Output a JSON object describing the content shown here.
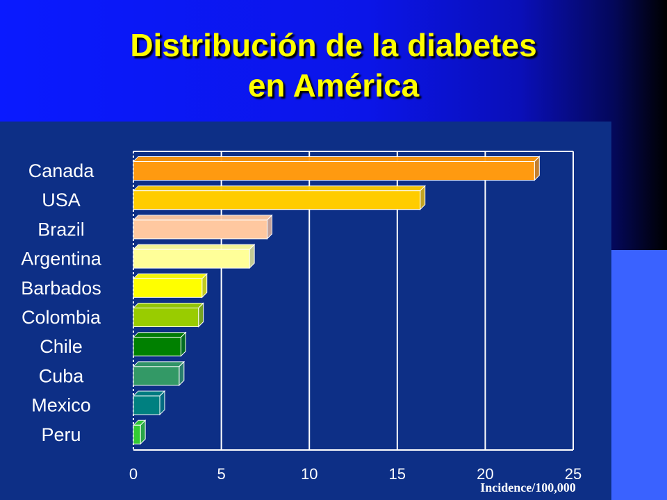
{
  "slide": {
    "title_line1": "Distribución de la diabetes",
    "title_line2": "en América"
  },
  "colors": {
    "title": "#ffff00",
    "chart_background": "#0d2f86",
    "grid": "#ffffff",
    "label_text": "#ffffff"
  },
  "chart_data": {
    "type": "bar",
    "orientation": "horizontal",
    "categories": [
      "Canada",
      "USA",
      "Brazil",
      "Argentina",
      "Barbados",
      "Colombia",
      "Chile",
      "Cuba",
      "Mexico",
      "Peru"
    ],
    "values": [
      22.8,
      16.3,
      7.6,
      6.6,
      3.9,
      3.7,
      2.7,
      2.6,
      1.5,
      0.4
    ],
    "bar_colors": [
      "#ff9a10",
      "#ffcc00",
      "#ffc8a0",
      "#ffff99",
      "#ffff00",
      "#99cc00",
      "#008000",
      "#339966",
      "#008080",
      "#33cc33"
    ],
    "xlabel": "Incidence/100,000",
    "xlim": [
      0,
      25
    ],
    "xticks": [
      0,
      5,
      10,
      15,
      20,
      25
    ],
    "grid": true
  }
}
